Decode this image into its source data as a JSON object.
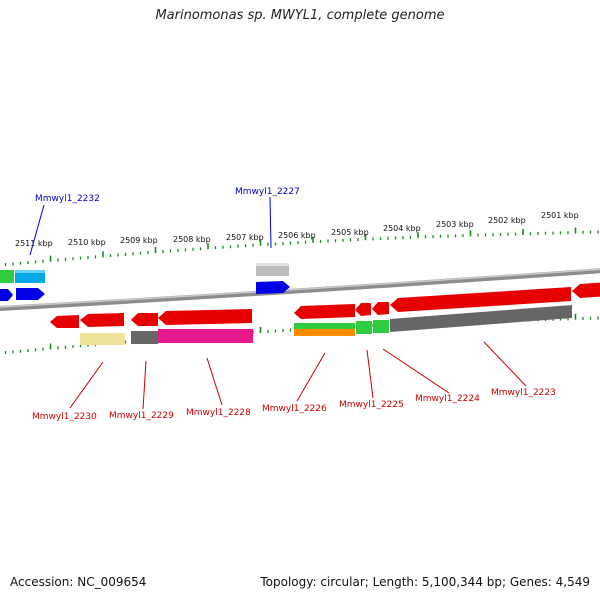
{
  "title": "Marinomonas sp. MWYL1, complete genome",
  "footer": {
    "accession": "Accession: NC_009654",
    "summary": "Topology: circular; Length: 5,100,344 bp; Genes: 4,549"
  },
  "colors": {
    "red": "#e60000",
    "blue": "#0000e6",
    "cyan": "#00a6e6",
    "green": "#2ecc40",
    "orange": "#ff8a00",
    "magenta": "#e6198c",
    "gray": "#666666",
    "lightgray": "#bdbdbd",
    "khaki": "#efe39a",
    "tick": "#1a8a1a",
    "backbone": "#8c8c8c",
    "label_top": "#0000cc",
    "label_bottom": "#cc0000"
  },
  "scale_ticks": [
    "2511 kbp",
    "2510 kbp",
    "2509 kbp",
    "2508 kbp",
    "2507 kbp",
    "2506 kbp",
    "2505 kbp",
    "2504 kbp",
    "2503 kbp",
    "2502 kbp",
    "2501 kbp"
  ],
  "gene_labels_top": [
    "Mmwyl1_2232",
    "Mmwyl1_2227"
  ],
  "gene_labels_bottom": [
    "Mmwyl1_2230",
    "Mmwyl1_2229",
    "Mmwyl1_2228",
    "Mmwyl1_2226",
    "Mmwyl1_2225",
    "Mmwyl1_2224",
    "Mmwyl1_2223"
  ]
}
